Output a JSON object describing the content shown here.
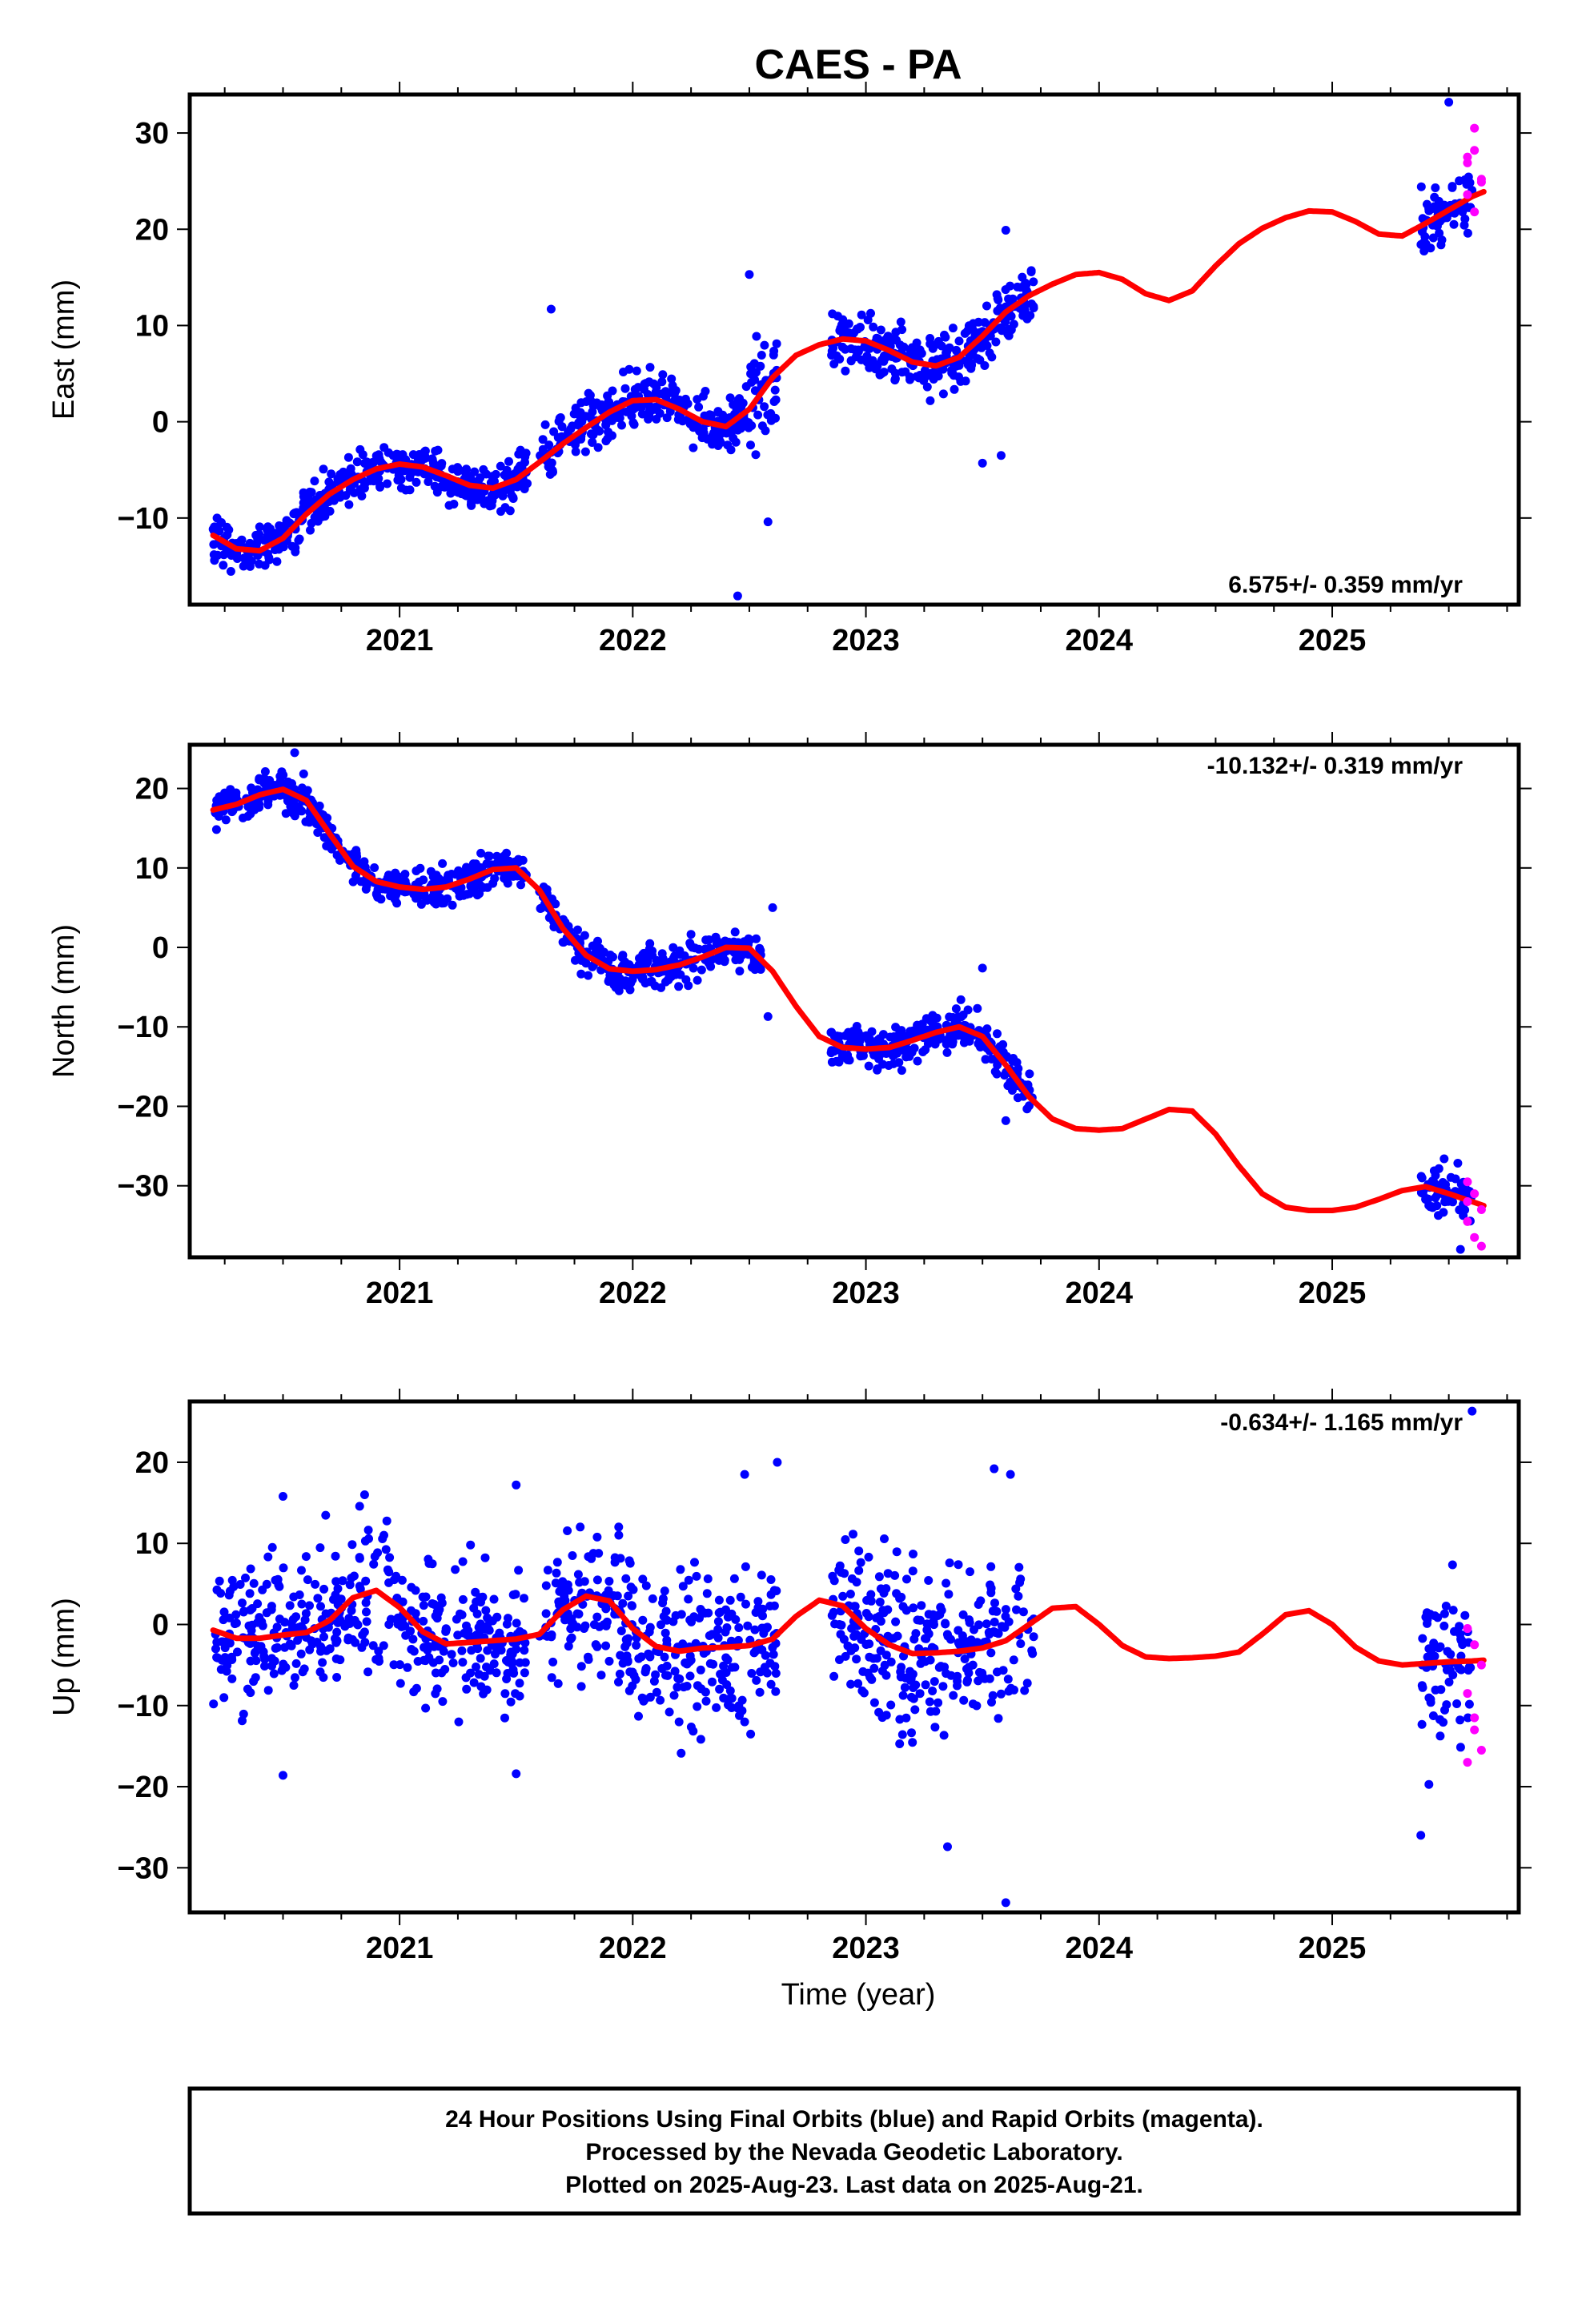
{
  "title": "CAES - PA",
  "xlabel": "Time (year)",
  "footer": {
    "line1": "24 Hour Positions Using Final Orbits (blue) and Rapid Orbits (magenta).",
    "line2": "Processed by the Nevada Geodetic Laboratory.",
    "line3": "Plotted on 2025-Aug-23. Last data on 2025-Aug-21."
  },
  "colors": {
    "final": "#0000ff",
    "rapid": "#ff00ff",
    "model": "#ff0000"
  },
  "chart_data": [
    {
      "type": "scatter",
      "ylabel": "East (mm)",
      "rate_label": "6.575+/- 0.359 mm/yr",
      "rate_position": "bottom-right",
      "x_ticks": [
        "2021",
        "2022",
        "2023",
        "2024",
        "2025"
      ],
      "y_ticks": [
        "30",
        "20",
        "10",
        "0",
        "−10"
      ],
      "xlim": [
        2020.1,
        2025.8
      ],
      "ylim": [
        -19,
        34
      ],
      "model": {
        "name": "model",
        "x": [
          2020.2,
          2020.3,
          2020.4,
          2020.5,
          2020.6,
          2020.7,
          2020.8,
          2020.9,
          2021.0,
          2021.1,
          2021.2,
          2021.3,
          2021.4,
          2021.5,
          2021.6,
          2021.7,
          2021.8,
          2021.9,
          2022.0,
          2022.1,
          2022.2,
          2022.3,
          2022.4,
          2022.5,
          2022.6,
          2022.7,
          2022.8,
          2022.9,
          2023.0,
          2023.1,
          2023.2,
          2023.3,
          2023.4,
          2023.5,
          2023.6,
          2023.7,
          2023.8,
          2023.9,
          2024.0,
          2024.1,
          2024.2,
          2024.3,
          2024.4,
          2024.5,
          2024.6,
          2024.7,
          2024.8,
          2024.9,
          2025.0,
          2025.1,
          2025.2,
          2025.3,
          2025.4,
          2025.5,
          2025.6,
          2025.65
        ],
        "y": [
          -11.8,
          -13.2,
          -13.4,
          -12.1,
          -9.6,
          -7.5,
          -6.0,
          -4.9,
          -4.4,
          -4.7,
          -5.6,
          -6.6,
          -6.9,
          -6.0,
          -4.2,
          -2.3,
          -0.6,
          1.0,
          2.2,
          2.3,
          1.3,
          0.0,
          -0.5,
          1.3,
          4.6,
          6.9,
          8.0,
          8.6,
          8.4,
          7.4,
          6.2,
          5.8,
          6.7,
          8.9,
          11.4,
          13.1,
          14.3,
          15.3,
          15.5,
          14.8,
          13.3,
          12.6,
          13.6,
          16.2,
          18.5,
          20.1,
          21.2,
          21.9,
          21.8,
          20.8,
          19.5,
          19.3,
          20.6,
          22.0,
          23.4,
          23.9
        ]
      },
      "final_segments": [
        {
          "x0": 2020.2,
          "x1": 2021.55,
          "spread": 1.2
        },
        {
          "x0": 2021.6,
          "x1": 2022.5,
          "spread": 1.4
        },
        {
          "x0": 2022.5,
          "x1": 2022.62,
          "spread": 3.0
        },
        {
          "x0": 2022.85,
          "x1": 2023.72,
          "spread": 1.6
        },
        {
          "x0": 2025.38,
          "x1": 2025.6,
          "spread": 1.8
        }
      ],
      "outliers": [
        {
          "x": 2022.45,
          "y": -18.1
        },
        {
          "x": 2022.5,
          "y": 15.3
        },
        {
          "x": 2023.6,
          "y": 19.9
        },
        {
          "x": 2021.65,
          "y": 11.7
        },
        {
          "x": 2025.5,
          "y": 33.2
        },
        {
          "x": 2022.58,
          "y": -10.4
        },
        {
          "x": 2023.5,
          "y": -4.3
        },
        {
          "x": 2023.58,
          "y": -3.5
        }
      ],
      "rapid": {
        "x0": 2025.58,
        "x1": 2025.64,
        "y": [
          27.5,
          30.5,
          25.2,
          23.6,
          21.8,
          24.9,
          26.9,
          28.2
        ]
      }
    },
    {
      "type": "scatter",
      "ylabel": "North (mm)",
      "rate_label": "-10.132+/- 0.319 mm/yr",
      "rate_position": "top-right",
      "x_ticks": [
        "2021",
        "2022",
        "2023",
        "2024",
        "2025"
      ],
      "y_ticks": [
        "20",
        "10",
        "0",
        "−10",
        "−20",
        "−30"
      ],
      "xlim": [
        2020.1,
        2025.8
      ],
      "ylim": [
        -39,
        25.5
      ],
      "model": {
        "name": "model",
        "x": [
          2020.2,
          2020.3,
          2020.4,
          2020.5,
          2020.6,
          2020.7,
          2020.8,
          2020.9,
          2021.0,
          2021.1,
          2021.2,
          2021.3,
          2021.4,
          2021.5,
          2021.6,
          2021.7,
          2021.8,
          2021.9,
          2022.0,
          2022.1,
          2022.2,
          2022.3,
          2022.4,
          2022.5,
          2022.6,
          2022.7,
          2022.8,
          2022.9,
          2023.0,
          2023.1,
          2023.2,
          2023.3,
          2023.4,
          2023.5,
          2023.6,
          2023.7,
          2023.8,
          2023.9,
          2024.0,
          2024.1,
          2024.2,
          2024.3,
          2024.4,
          2024.5,
          2024.6,
          2024.7,
          2024.8,
          2024.9,
          2025.0,
          2025.1,
          2025.2,
          2025.3,
          2025.4,
          2025.5,
          2025.6,
          2025.65
        ],
        "y": [
          17.3,
          18.0,
          19.2,
          19.9,
          18.5,
          14.3,
          10.2,
          8.3,
          7.6,
          7.3,
          7.6,
          8.6,
          9.8,
          10.0,
          7.2,
          2.4,
          -1.0,
          -2.7,
          -3.0,
          -2.8,
          -2.2,
          -1.2,
          0.0,
          -0.1,
          -3.0,
          -7.4,
          -11.2,
          -12.6,
          -12.8,
          -12.6,
          -11.7,
          -10.7,
          -10.0,
          -11.2,
          -14.8,
          -18.8,
          -21.6,
          -22.8,
          -23.0,
          -22.8,
          -21.6,
          -20.4,
          -20.6,
          -23.5,
          -27.5,
          -31.0,
          -32.7,
          -33.1,
          -33.1,
          -32.7,
          -31.7,
          -30.6,
          -30.1,
          -31.0,
          -32.0,
          -32.5
        ]
      },
      "final_segments": [
        {
          "x0": 2020.2,
          "x1": 2021.55,
          "spread": 1.1
        },
        {
          "x0": 2021.6,
          "x1": 2022.55,
          "spread": 1.2
        },
        {
          "x0": 2022.85,
          "x1": 2023.72,
          "spread": 1.3
        },
        {
          "x0": 2025.38,
          "x1": 2025.6,
          "spread": 1.5
        }
      ],
      "outliers": [
        {
          "x": 2020.55,
          "y": 24.5
        },
        {
          "x": 2022.6,
          "y": 5.0
        },
        {
          "x": 2022.58,
          "y": -8.7
        },
        {
          "x": 2023.5,
          "y": -2.6
        },
        {
          "x": 2023.6,
          "y": -21.8
        },
        {
          "x": 2025.48,
          "y": -26.6
        },
        {
          "x": 2025.55,
          "y": -38.0
        }
      ],
      "rapid": {
        "x0": 2025.58,
        "x1": 2025.64,
        "y": [
          -29.5,
          -31.0,
          -33.0,
          -34.5,
          -36.5,
          -37.6,
          -32.0
        ]
      }
    },
    {
      "type": "scatter",
      "ylabel": "Up (mm)",
      "rate_label": "-0.634+/- 1.165 mm/yr",
      "rate_position": "top-right",
      "x_ticks": [
        "2021",
        "2022",
        "2023",
        "2024",
        "2025"
      ],
      "y_ticks": [
        "20",
        "10",
        "0",
        "−10",
        "−20",
        "−30"
      ],
      "xlim": [
        2020.1,
        2025.8
      ],
      "ylim": [
        -35.5,
        27.5
      ],
      "model": {
        "name": "model",
        "x": [
          2020.2,
          2020.3,
          2020.4,
          2020.5,
          2020.6,
          2020.7,
          2020.8,
          2020.9,
          2021.0,
          2021.1,
          2021.2,
          2021.3,
          2021.4,
          2021.5,
          2021.6,
          2021.7,
          2021.8,
          2021.9,
          2022.0,
          2022.1,
          2022.2,
          2022.3,
          2022.4,
          2022.5,
          2022.6,
          2022.7,
          2022.8,
          2022.9,
          2023.0,
          2023.1,
          2023.2,
          2023.3,
          2023.4,
          2023.5,
          2023.6,
          2023.7,
          2023.8,
          2023.9,
          2024.0,
          2024.1,
          2024.2,
          2024.3,
          2024.4,
          2024.5,
          2024.6,
          2024.7,
          2024.8,
          2024.9,
          2025.0,
          2025.1,
          2025.2,
          2025.3,
          2025.4,
          2025.5,
          2025.6,
          2025.65
        ],
        "y": [
          -0.7,
          -1.7,
          -1.7,
          -1.3,
          -1.0,
          0.5,
          3.3,
          4.2,
          2.1,
          -0.9,
          -2.4,
          -2.2,
          -2.0,
          -1.8,
          -1.2,
          1.8,
          3.5,
          2.9,
          -0.5,
          -2.7,
          -3.3,
          -2.9,
          -2.8,
          -2.6,
          -1.8,
          1.0,
          3.0,
          2.3,
          -0.5,
          -2.5,
          -3.6,
          -3.5,
          -3.3,
          -2.9,
          -2.0,
          0.0,
          2.0,
          2.2,
          0.0,
          -2.6,
          -4.0,
          -4.2,
          -4.1,
          -3.9,
          -3.4,
          -1.2,
          1.2,
          1.7,
          0.0,
          -2.8,
          -4.5,
          -5.0,
          -4.8,
          -4.6,
          -4.5,
          -4.4
        ]
      },
      "final_segments": [
        {
          "x0": 2020.2,
          "x1": 2021.55,
          "spread": 4.5
        },
        {
          "x0": 2021.6,
          "x1": 2022.62,
          "spread": 4.8
        },
        {
          "x0": 2022.85,
          "x1": 2023.72,
          "spread": 5.2
        },
        {
          "x0": 2025.38,
          "x1": 2025.6,
          "spread": 5.5
        }
      ],
      "outliers": [
        {
          "x": 2020.5,
          "y": 15.8
        },
        {
          "x": 2020.85,
          "y": 16.0
        },
        {
          "x": 2021.5,
          "y": 17.2
        },
        {
          "x": 2022.48,
          "y": 18.5
        },
        {
          "x": 2022.62,
          "y": 20.0
        },
        {
          "x": 2023.55,
          "y": 19.2
        },
        {
          "x": 2023.62,
          "y": 18.5
        },
        {
          "x": 2021.5,
          "y": -18.4
        },
        {
          "x": 2020.5,
          "y": -18.6
        },
        {
          "x": 2023.35,
          "y": -27.4
        },
        {
          "x": 2023.6,
          "y": -34.3
        },
        {
          "x": 2025.38,
          "y": -26.0
        },
        {
          "x": 2025.6,
          "y": 26.3
        }
      ],
      "rapid": {
        "x0": 2025.58,
        "x1": 2025.64,
        "y": [
          -0.5,
          -2.5,
          -5.0,
          -8.5,
          -13.0,
          -15.5,
          -17.0,
          -11.5
        ]
      }
    }
  ]
}
